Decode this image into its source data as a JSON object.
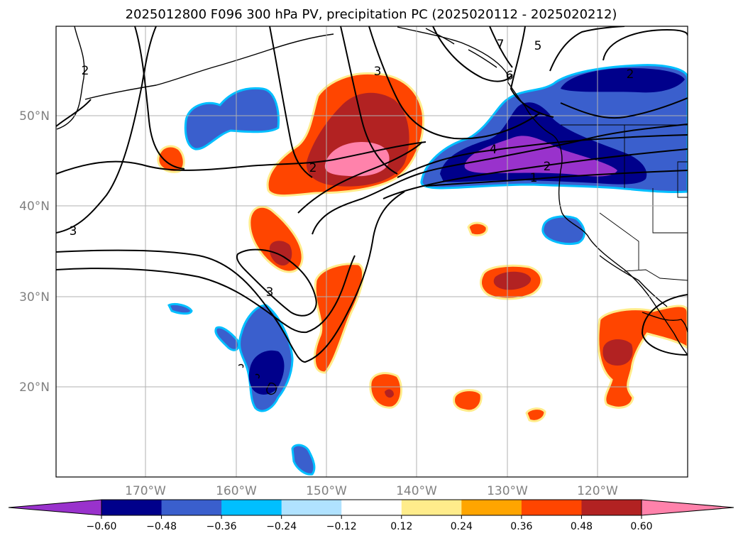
{
  "title": "2025012800 F096 300 hPa PV, precipitation PC (2025020112 - 2025020212)",
  "lat_labels": [
    "50°N",
    "40°N",
    "30°N",
    "20°N"
  ],
  "lon_labels": [
    "170°W",
    "160°W",
    "150°W",
    "140°W",
    "130°W",
    "120°W"
  ],
  "colorbar": {
    "tick_labels": [
      "−0.60",
      "−0.48",
      "−0.36",
      "−0.24",
      "−0.12",
      "0.12",
      "0.24",
      "0.36",
      "0.48",
      "0.60"
    ],
    "colors": [
      "#9932CC",
      "#00008B",
      "#3A5FCD",
      "#00BFFF",
      "#B0E2FF",
      "#FFFFFF",
      "#FFEC8B",
      "#FFA500",
      "#FF4500",
      "#B22222",
      "#FF82AB"
    ]
  },
  "contour_labels": [
    "2",
    "3",
    "3",
    "2",
    "3",
    "4",
    "2",
    "1",
    "5",
    "7",
    "6",
    "2"
  ]
}
